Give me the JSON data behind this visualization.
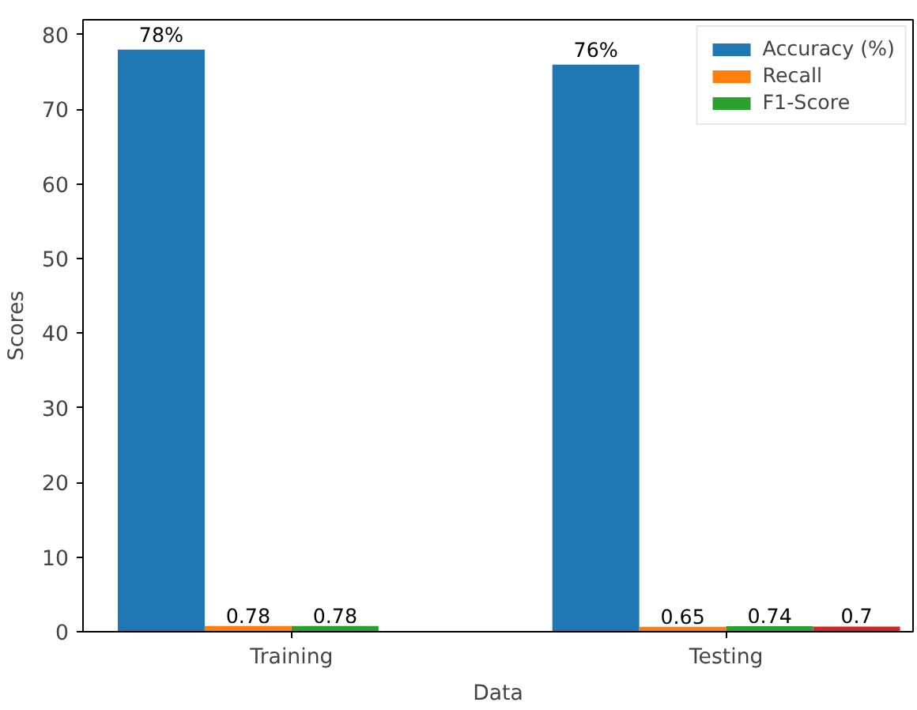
{
  "chart_data": {
    "type": "bar",
    "xlabel": "Data",
    "ylabel": "Scores",
    "categories": [
      "Training",
      "Testing"
    ],
    "series": [
      {
        "name": "Accuracy (%)",
        "color": "#1f77b4",
        "values": [
          78,
          76
        ],
        "value_labels": [
          "78%",
          "76%"
        ]
      },
      {
        "name": "Recall",
        "color": "#ff7f0e",
        "values": [
          0.78,
          0.65
        ],
        "value_labels": [
          "0.78",
          "0.65"
        ]
      },
      {
        "name": "F1-Score",
        "color": "#2ca02c",
        "values": [
          0.78,
          0.74
        ],
        "value_labels": [
          "0.78",
          "0.74"
        ]
      },
      {
        "color": "#d62728",
        "values": [
          null,
          0.7
        ],
        "value_labels": [
          null,
          "0.7"
        ]
      }
    ],
    "ylim": [
      0,
      82
    ],
    "yticks": [
      0,
      10,
      20,
      30,
      40,
      50,
      60,
      70,
      80
    ],
    "grid": false,
    "legend": "top right"
  }
}
